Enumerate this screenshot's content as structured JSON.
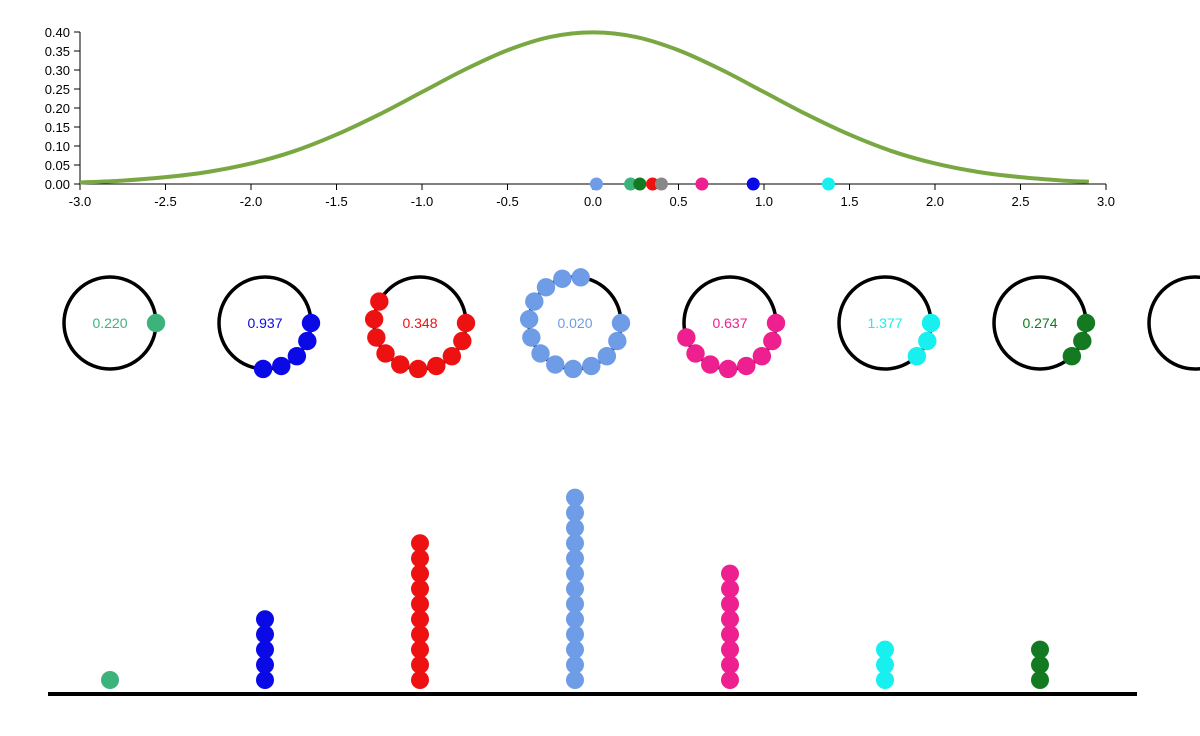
{
  "chart_data": [
    {
      "type": "line",
      "xlim": [
        -3.0,
        3.0
      ],
      "ylim": [
        0.0,
        0.4
      ],
      "x_ticks": [
        "-3.0",
        "-2.5",
        "-2.0",
        "-1.5",
        "-1.0",
        "-0.5",
        "0.0",
        "0.5",
        "1.0",
        "1.5",
        "2.0",
        "2.5",
        "3.0"
      ],
      "y_ticks": [
        "0.00",
        "0.05",
        "0.10",
        "0.15",
        "0.20",
        "0.25",
        "0.30",
        "0.35",
        "0.40"
      ],
      "series": [
        {
          "color": "#79a843",
          "x": [
            -3.0,
            -2.75,
            -2.5,
            -2.25,
            -2.0,
            -1.75,
            -1.5,
            -1.25,
            -1.0,
            -0.75,
            -0.5,
            -0.25,
            0.0,
            0.25,
            0.5,
            0.75,
            1.0,
            1.25,
            1.5,
            1.75,
            2.0,
            2.25,
            2.5,
            2.75,
            2.9
          ],
          "values": [
            0.004,
            0.009,
            0.018,
            0.032,
            0.054,
            0.086,
            0.13,
            0.183,
            0.242,
            0.301,
            0.352,
            0.387,
            0.399,
            0.387,
            0.352,
            0.301,
            0.242,
            0.183,
            0.13,
            0.086,
            0.054,
            0.032,
            0.018,
            0.009,
            0.006
          ]
        }
      ],
      "markers": [
        {
          "x": 0.02,
          "color": "#6f9ce6"
        },
        {
          "x": 0.22,
          "color": "#3cb37b"
        },
        {
          "x": 0.274,
          "color": "#137a22"
        },
        {
          "x": 0.348,
          "color": "#ee1111"
        },
        {
          "x": 0.4,
          "color": "#888888"
        },
        {
          "x": 0.637,
          "color": "#ee1f8e"
        },
        {
          "x": 0.937,
          "color": "#0a0ae6"
        },
        {
          "x": 1.377,
          "color": "#18f0f0"
        }
      ]
    },
    {
      "type": "dot-rings",
      "rings": [
        {
          "label": "0.220",
          "count": 1,
          "color": "#3cb37b"
        },
        {
          "label": "0.937",
          "count": 5,
          "color": "#0a0ae6"
        },
        {
          "label": "0.348",
          "count": 10,
          "color": "#ee1111"
        },
        {
          "label": "0.020",
          "count": 13,
          "color": "#6f9ce6"
        },
        {
          "label": "0.637",
          "count": 8,
          "color": "#ee1f8e"
        },
        {
          "label": "1.377",
          "count": 3,
          "color": "#18f0f0"
        },
        {
          "label": "0.274",
          "count": 3,
          "color": "#137a22"
        }
      ]
    },
    {
      "type": "dot-columns",
      "columns": [
        {
          "count": 1,
          "color": "#3cb37b"
        },
        {
          "count": 5,
          "color": "#0a0ae6"
        },
        {
          "count": 10,
          "color": "#ee1111"
        },
        {
          "count": 13,
          "color": "#6f9ce6"
        },
        {
          "count": 8,
          "color": "#ee1f8e"
        },
        {
          "count": 3,
          "color": "#18f0f0"
        },
        {
          "count": 3,
          "color": "#137a22"
        }
      ]
    }
  ]
}
